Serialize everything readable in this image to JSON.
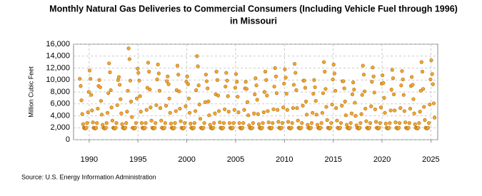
{
  "chart_data": {
    "type": "scatter",
    "title": [
      "Monthly Natural Gas Deliveries to Commercial Consumers (Including Vehicle Fuel through 1996)",
      "in Missouri"
    ],
    "y_label": "Million Cubic Feet",
    "source": "Source: U.S. Energy Information Administration",
    "color": "#f0a830",
    "edge_color": "#b06a10",
    "grid": true,
    "xlim": [
      1988.4,
      2025.7
    ],
    "xticks": [
      1990,
      1995,
      2000,
      2005,
      2010,
      2015,
      2020,
      2025
    ],
    "ylim": [
      0,
      16000
    ],
    "yticks": [
      {
        "value": 0,
        "label": "0"
      },
      {
        "value": 2000,
        "label": "2,000"
      },
      {
        "value": 4000,
        "label": "4,000"
      },
      {
        "value": 6000,
        "label": "6,000"
      },
      {
        "value": 8000,
        "label": "8,000"
      },
      {
        "value": 10000,
        "label": "10,000"
      },
      {
        "value": 12000,
        "label": "12,000"
      },
      {
        "value": 14000,
        "label": "14,000"
      },
      {
        "value": 16000,
        "label": "16,000"
      }
    ],
    "x": [
      1989.04,
      1989.13,
      1989.21,
      1989.29,
      1989.38,
      1989.46,
      1989.54,
      1989.63,
      1989.71,
      1989.79,
      1989.88,
      1989.96,
      1990.04,
      1990.13,
      1990.21,
      1990.29,
      1990.38,
      1990.46,
      1990.54,
      1990.63,
      1990.71,
      1990.79,
      1990.88,
      1990.96,
      1991.04,
      1991.13,
      1991.21,
      1991.29,
      1991.38,
      1991.46,
      1991.54,
      1991.63,
      1991.71,
      1991.79,
      1991.88,
      1991.96,
      1992.04,
      1992.13,
      1992.21,
      1992.29,
      1992.38,
      1992.46,
      1992.54,
      1992.63,
      1992.71,
      1992.79,
      1992.88,
      1992.96,
      1993.04,
      1993.13,
      1993.21,
      1993.29,
      1993.38,
      1993.46,
      1993.54,
      1993.63,
      1993.71,
      1993.79,
      1993.88,
      1993.96,
      1994.04,
      1994.13,
      1994.21,
      1994.29,
      1994.38,
      1994.46,
      1994.54,
      1994.63,
      1994.71,
      1994.79,
      1994.88,
      1994.96,
      1995.04,
      1995.13,
      1995.21,
      1995.29,
      1995.38,
      1995.46,
      1995.54,
      1995.63,
      1995.71,
      1995.79,
      1995.88,
      1995.96,
      1996.04,
      1996.13,
      1996.21,
      1996.29,
      1996.38,
      1996.46,
      1996.54,
      1996.63,
      1996.71,
      1996.79,
      1996.88,
      1996.96,
      1997.04,
      1997.13,
      1997.21,
      1997.29,
      1997.38,
      1997.46,
      1997.54,
      1997.63,
      1997.71,
      1997.79,
      1997.88,
      1997.96,
      1998.04,
      1998.13,
      1998.21,
      1998.29,
      1998.38,
      1998.46,
      1998.54,
      1998.63,
      1998.71,
      1998.79,
      1998.88,
      1998.96,
      1999.04,
      1999.13,
      1999.21,
      1999.29,
      1999.38,
      1999.46,
      1999.54,
      1999.63,
      1999.71,
      1999.79,
      1999.88,
      1999.96,
      2000.04,
      2000.13,
      2000.21,
      2000.29,
      2000.38,
      2000.46,
      2000.54,
      2000.63,
      2000.71,
      2000.79,
      2000.88,
      2000.96,
      2001.04,
      2001.13,
      2001.21,
      2001.29,
      2001.38,
      2001.46,
      2001.54,
      2001.63,
      2001.71,
      2001.79,
      2001.88,
      2001.96,
      2002.04,
      2002.13,
      2002.21,
      2002.29,
      2002.38,
      2002.46,
      2002.54,
      2002.63,
      2002.71,
      2002.79,
      2002.88,
      2002.96,
      2003.04,
      2003.13,
      2003.21,
      2003.29,
      2003.38,
      2003.46,
      2003.54,
      2003.63,
      2003.71,
      2003.79,
      2003.88,
      2003.96,
      2004.04,
      2004.13,
      2004.21,
      2004.29,
      2004.38,
      2004.46,
      2004.54,
      2004.63,
      2004.71,
      2004.79,
      2004.88,
      2004.96,
      2005.04,
      2005.13,
      2005.21,
      2005.29,
      2005.38,
      2005.46,
      2005.54,
      2005.63,
      2005.71,
      2005.79,
      2005.88,
      2005.96,
      2006.04,
      2006.13,
      2006.21,
      2006.29,
      2006.38,
      2006.46,
      2006.54,
      2006.63,
      2006.71,
      2006.79,
      2006.88,
      2006.96,
      2007.04,
      2007.13,
      2007.21,
      2007.29,
      2007.38,
      2007.46,
      2007.54,
      2007.63,
      2007.71,
      2007.79,
      2007.88,
      2007.96,
      2008.04,
      2008.13,
      2008.21,
      2008.29,
      2008.38,
      2008.46,
      2008.54,
      2008.63,
      2008.71,
      2008.79,
      2008.88,
      2008.96,
      2009.04,
      2009.13,
      2009.21,
      2009.29,
      2009.38,
      2009.46,
      2009.54,
      2009.63,
      2009.71,
      2009.79,
      2009.88,
      2009.96,
      2010.04,
      2010.13,
      2010.21,
      2010.29,
      2010.38,
      2010.46,
      2010.54,
      2010.63,
      2010.71,
      2010.79,
      2010.88,
      2010.96,
      2011.04,
      2011.13,
      2011.21,
      2011.29,
      2011.38,
      2011.46,
      2011.54,
      2011.63,
      2011.71,
      2011.79,
      2011.88,
      2011.96,
      2012.04,
      2012.13,
      2012.21,
      2012.29,
      2012.38,
      2012.46,
      2012.54,
      2012.63,
      2012.71,
      2012.79,
      2012.88,
      2012.96,
      2013.04,
      2013.13,
      2013.21,
      2013.29,
      2013.38,
      2013.46,
      2013.54,
      2013.63,
      2013.71,
      2013.79,
      2013.88,
      2013.96,
      2014.04,
      2014.13,
      2014.21,
      2014.29,
      2014.38,
      2014.46,
      2014.54,
      2014.63,
      2014.71,
      2014.79,
      2014.88,
      2014.96,
      2015.04,
      2015.13,
      2015.21,
      2015.29,
      2015.38,
      2015.46,
      2015.54,
      2015.63,
      2015.71,
      2015.79,
      2015.88,
      2015.96,
      2016.04,
      2016.13,
      2016.21,
      2016.29,
      2016.38,
      2016.46,
      2016.54,
      2016.63,
      2016.71,
      2016.79,
      2016.88,
      2016.96,
      2017.04,
      2017.13,
      2017.21,
      2017.29,
      2017.38,
      2017.46,
      2017.54,
      2017.63,
      2017.71,
      2017.79,
      2017.88,
      2017.96,
      2018.04,
      2018.13,
      2018.21,
      2018.29,
      2018.38,
      2018.46,
      2018.54,
      2018.63,
      2018.71,
      2018.79,
      2018.88,
      2018.96,
      2019.04,
      2019.13,
      2019.21,
      2019.29,
      2019.38,
      2019.46,
      2019.54,
      2019.63,
      2019.71,
      2019.79,
      2019.88,
      2019.96,
      2020.04,
      2020.13,
      2020.21,
      2020.29,
      2020.38,
      2020.46,
      2020.54,
      2020.63,
      2020.71,
      2020.79,
      2020.88,
      2020.96,
      2021.04,
      2021.13,
      2021.21,
      2021.29,
      2021.38,
      2021.46,
      2021.54,
      2021.63,
      2021.71,
      2021.79,
      2021.88,
      2021.96,
      2022.04,
      2022.13,
      2022.21,
      2022.29,
      2022.38,
      2022.46,
      2022.54,
      2022.63,
      2022.71,
      2022.79,
      2022.88,
      2022.96,
      2023.04,
      2023.13,
      2023.21,
      2023.29,
      2023.38,
      2023.46,
      2023.54,
      2023.63,
      2023.71,
      2023.79,
      2023.88,
      2023.96,
      2024.04,
      2024.13,
      2024.21,
      2024.29,
      2024.38,
      2024.46,
      2024.54,
      2024.63,
      2024.71,
      2024.79,
      2024.88,
      2024.96,
      2025.04,
      2025.13,
      2025.21,
      2025.29,
      2025.38
    ],
    "values": [
      10200,
      9000,
      6600,
      4300,
      2600,
      2000,
      1900,
      1900,
      2000,
      2800,
      4600,
      8000,
      11600,
      10200,
      7500,
      4900,
      2900,
      2000,
      1900,
      1900,
      2000,
      2800,
      5200,
      9000,
      10000,
      8800,
      6500,
      4200,
      2500,
      2000,
      1900,
      1900,
      2000,
      2800,
      4500,
      7800,
      12800,
      11300,
      8300,
      5400,
      3200,
      2000,
      1900,
      1900,
      2000,
      2800,
      5800,
      10000,
      10500,
      9200,
      6800,
      4400,
      2600,
      2000,
      1900,
      1900,
      2000,
      2800,
      4700,
      8200,
      15300,
      13500,
      9900,
      6400,
      3800,
      2000,
      1900,
      1900,
      2000,
      2800,
      6900,
      11900,
      11200,
      9900,
      7300,
      4700,
      2800,
      2000,
      1900,
      1900,
      2000,
      2800,
      5000,
      8700,
      12900,
      11400,
      8400,
      5400,
      3200,
      2000,
      1900,
      1900,
      2000,
      2800,
      5800,
      10100,
      12600,
      11100,
      8200,
      5300,
      3200,
      2000,
      1900,
      1900,
      2000,
      2800,
      5700,
      9800,
      10600,
      9300,
      6900,
      4500,
      2700,
      2000,
      1900,
      1900,
      2000,
      2800,
      4800,
      8300,
      12400,
      10900,
      8100,
      5200,
      3100,
      2000,
      1900,
      1900,
      2000,
      2800,
      5600,
      9700,
      10600,
      9300,
      6900,
      4500,
      2700,
      2000,
      1900,
      1900,
      2000,
      2800,
      4800,
      8300,
      14000,
      12300,
      9100,
      5900,
      3500,
      2000,
      1900,
      1900,
      2000,
      2800,
      6300,
      10900,
      9800,
      8600,
      6400,
      4100,
      2500,
      2000,
      1900,
      1900,
      2000,
      2800,
      4400,
      7600,
      11400,
      10000,
      7400,
      4800,
      2900,
      2000,
      1900,
      1900,
      2000,
      2800,
      5100,
      8900,
      11200,
      9900,
      7300,
      4700,
      2800,
      2000,
      1900,
      1900,
      2000,
      2800,
      5000,
      8700,
      11000,
      9700,
      7200,
      4600,
      2800,
      2000,
      1900,
      1900,
      2000,
      2800,
      5000,
      8600,
      9700,
      8500,
      6300,
      4100,
      2400,
      2000,
      1900,
      1900,
      2000,
      2800,
      4400,
      7600,
      10300,
      9100,
      6700,
      4300,
      2600,
      2000,
      1900,
      1900,
      2000,
      2800,
      4600,
      8000,
      11400,
      10000,
      7400,
      4800,
      2900,
      2000,
      1900,
      1900,
      2000,
      2800,
      5100,
      8900,
      12000,
      10600,
      7800,
      5000,
      3000,
      2000,
      1900,
      1900,
      2000,
      2800,
      5400,
      9400,
      11800,
      10400,
      7700,
      5000,
      3000,
      2000,
      1900,
      1900,
      2000,
      2800,
      5300,
      9200,
      12700,
      11200,
      8300,
      5300,
      3200,
      2000,
      1900,
      1900,
      2000,
      2800,
      5700,
      9900,
      9900,
      8700,
      6400,
      4200,
      2500,
      2000,
      1900,
      1900,
      2000,
      2800,
      4500,
      7700,
      10000,
      8800,
      6500,
      4200,
      2500,
      2000,
      1900,
      1900,
      2000,
      2800,
      4500,
      7800,
      13000,
      11400,
      8500,
      5500,
      3300,
      2000,
      1900,
      1900,
      2000,
      2800,
      5900,
      10100,
      12600,
      11100,
      8200,
      5300,
      3200,
      2000,
      1900,
      1900,
      2000,
      2800,
      5700,
      9800,
      9800,
      8600,
      6400,
      4100,
      2500,
      2000,
      1900,
      1900,
      2000,
      2800,
      4400,
      7600,
      9600,
      8400,
      6200,
      4000,
      2400,
      2000,
      1900,
      1900,
      2000,
      2800,
      4300,
      7500,
      12400,
      10900,
      8100,
      5200,
      3100,
      2000,
      1900,
      1900,
      2000,
      2800,
      5600,
      9700,
      12100,
      10600,
      7900,
      5100,
      3000,
      2000,
      1900,
      1900,
      2000,
      2800,
      5400,
      9400,
      10800,
      9500,
      7000,
      4500,
      2700,
      2000,
      1900,
      1900,
      2000,
      2800,
      4900,
      8400,
      11700,
      10300,
      7600,
      4900,
      2900,
      2000,
      1900,
      1900,
      2000,
      2800,
      5300,
      9100,
      11500,
      10100,
      7500,
      4800,
      2900,
      2000,
      1900,
      1900,
      2000,
      2800,
      5200,
      9000,
      10500,
      9200,
      6800,
      4400,
      2600,
      2000,
      1900,
      1900,
      2000,
      2800,
      4700,
      8200,
      13000,
      11400,
      8500,
      5500,
      3300,
      2000,
      1900,
      1900,
      2000,
      2800,
      5900,
      10100,
      13300,
      11000,
      9300,
      6100,
      3700
    ]
  }
}
